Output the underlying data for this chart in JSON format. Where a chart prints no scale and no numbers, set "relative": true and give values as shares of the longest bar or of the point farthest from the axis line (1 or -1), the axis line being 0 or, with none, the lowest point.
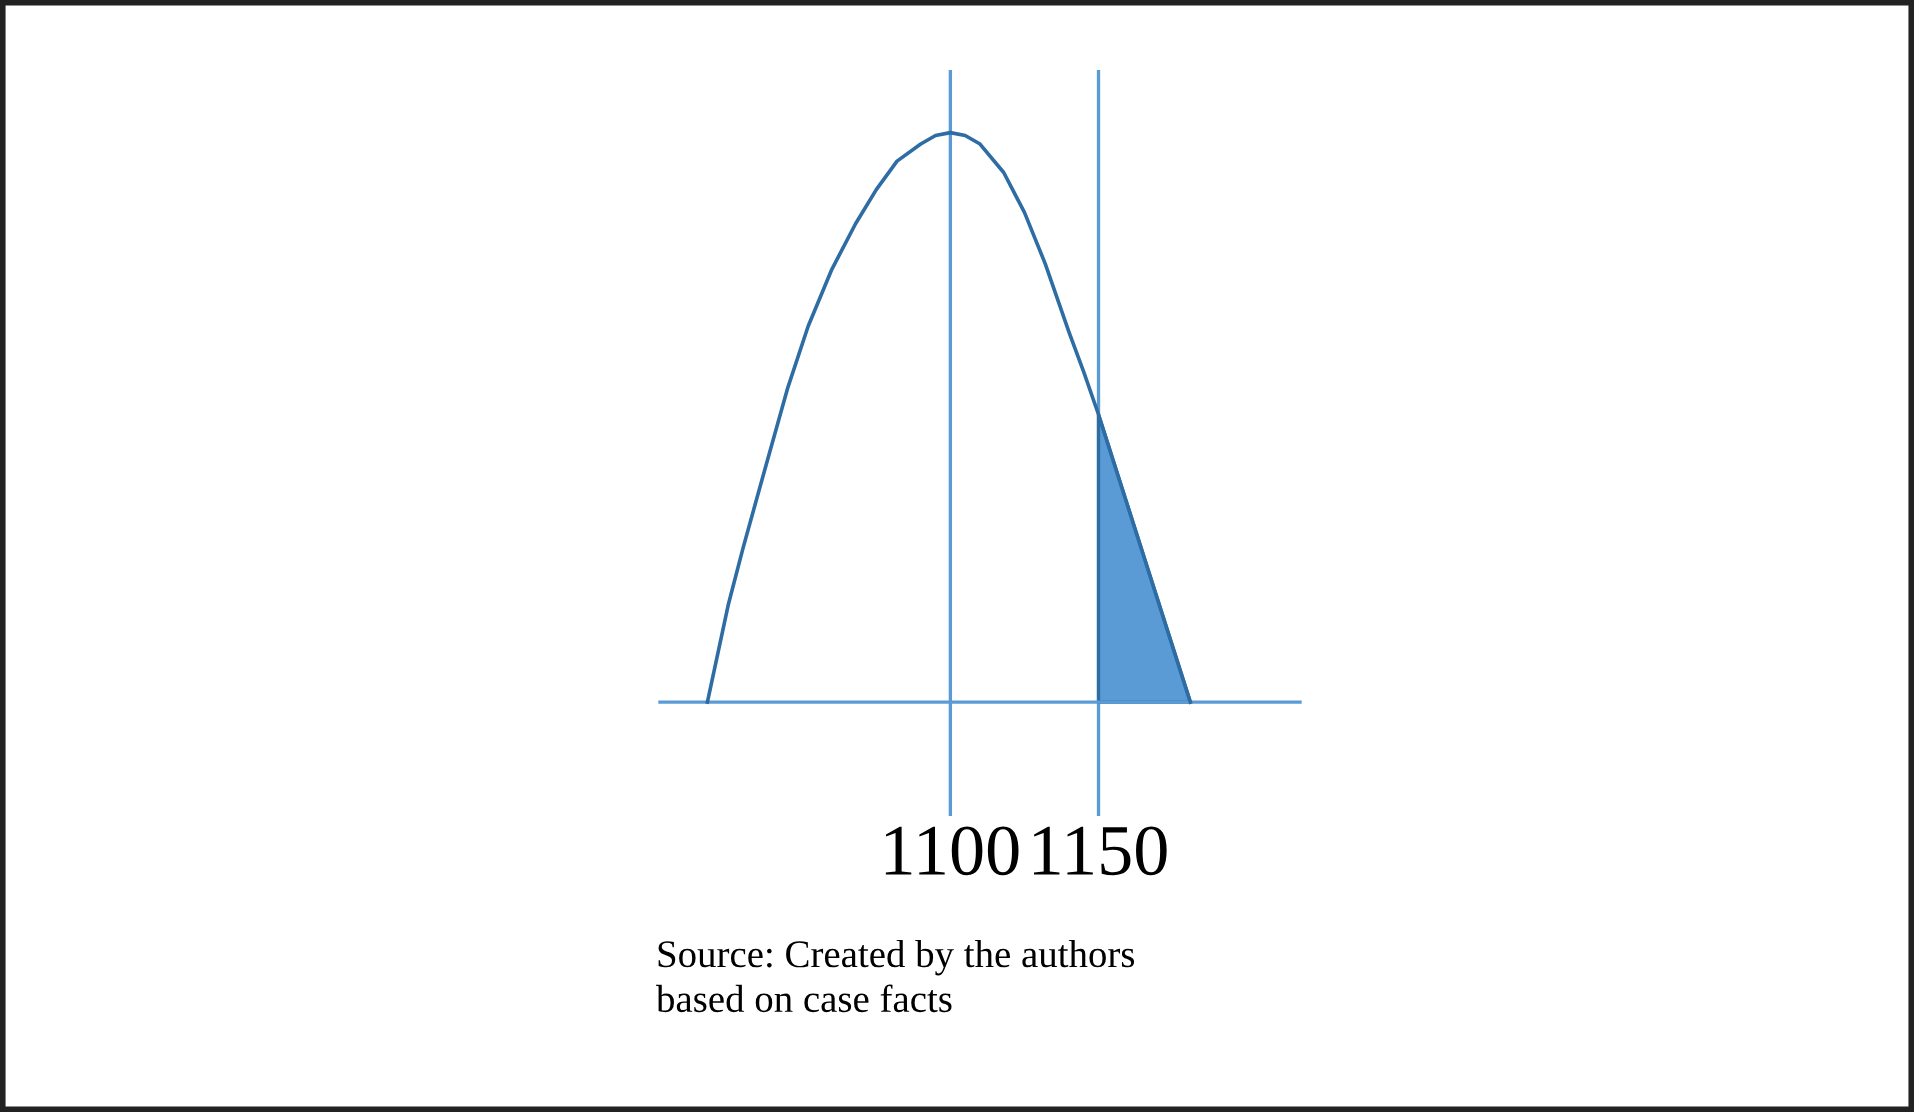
{
  "chart_data": {
    "type": "line",
    "relative": true,
    "xlim": [
      1002,
      1218
    ],
    "xticks": [
      1100,
      1150
    ],
    "series": [
      {
        "color": "#2e6ca4",
        "x": [
          1018,
          1025,
          1030,
          1038,
          1045,
          1052,
          1060,
          1068,
          1075,
          1082,
          1090,
          1095,
          1100,
          1105,
          1110,
          1118,
          1125,
          1132,
          1140,
          1145,
          1150,
          1181
        ],
        "values": [
          0,
          0.17,
          0.27,
          0.42,
          0.55,
          0.66,
          0.76,
          0.84,
          0.9,
          0.95,
          0.98,
          0.995,
          1,
          0.995,
          0.98,
          0.93,
          0.86,
          0.77,
          0.65,
          0.58,
          0.505,
          0
        ]
      },
      {
        "type": "area",
        "color": "#5b9bd5",
        "x": [
          1150,
          1181
        ],
        "values": [
          0.505,
          0
        ]
      }
    ],
    "ref_lines": [
      {
        "axis": "x",
        "value": 1100,
        "color": "#5b9bd5"
      },
      {
        "axis": "x",
        "value": 1150,
        "color": "#5b9bd5"
      }
    ],
    "grid": false,
    "legend": false,
    "annotations": [
      "Source: Created by the authors\nbased on case facts"
    ]
  }
}
